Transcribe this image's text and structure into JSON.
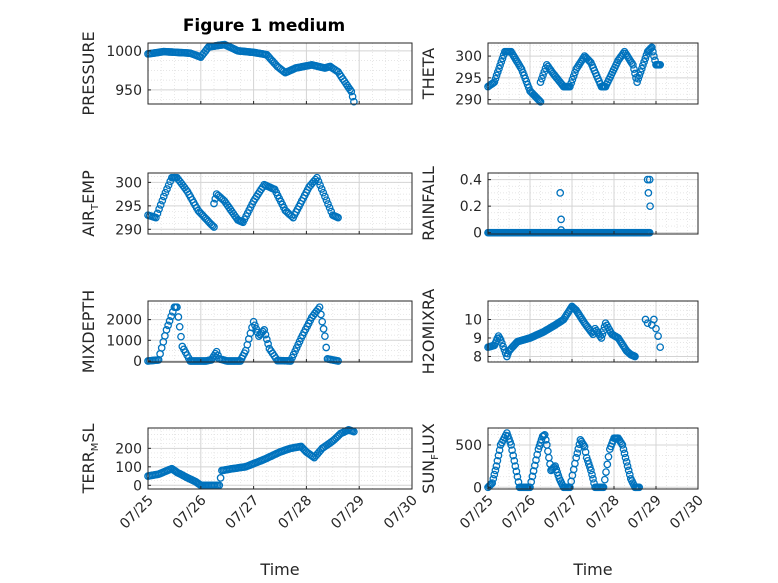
{
  "figure": {
    "title": "Figure 1 medium",
    "marker_color": "#0072BD",
    "x_tick_labels": [
      "07/25",
      "07/26",
      "07/27",
      "07/28",
      "07/29",
      "07/30"
    ],
    "x_axis_label": "Time"
  },
  "chart_data": [
    {
      "type": "scatter",
      "ylabel": "PRESSURE",
      "ylim": [
        932,
        1010
      ],
      "yticks": [
        950,
        1000
      ],
      "x_range_days": [
        0,
        5
      ],
      "grid": true,
      "knots": [
        [
          0,
          996
        ],
        [
          0.3,
          999
        ],
        [
          0.8,
          997
        ],
        [
          1.0,
          992
        ],
        [
          1.15,
          1005
        ],
        [
          1.45,
          1008
        ],
        [
          1.7,
          1000
        ],
        [
          2.0,
          998
        ],
        [
          2.25,
          995
        ],
        [
          2.45,
          980
        ],
        [
          2.6,
          972
        ],
        [
          2.8,
          978
        ],
        [
          3.1,
          982
        ],
        [
          3.35,
          978
        ],
        [
          3.45,
          980
        ],
        [
          3.6,
          973
        ],
        [
          3.75,
          958
        ],
        [
          3.85,
          948
        ],
        [
          3.9,
          935
        ]
      ]
    },
    {
      "type": "scatter",
      "ylabel": "THETA",
      "ylim": [
        289,
        303
      ],
      "yticks": [
        290,
        295,
        300
      ],
      "x_range_days": [
        0,
        5
      ],
      "grid": true,
      "knots": [
        [
          0,
          293
        ],
        [
          0.15,
          294
        ],
        [
          0.4,
          301
        ],
        [
          0.55,
          301
        ],
        [
          0.8,
          297
        ],
        [
          1.0,
          292
        ],
        [
          1.2,
          290
        ],
        [
          1.25,
          289.5
        ],
        [
          1.25,
          294
        ],
        [
          1.4,
          298
        ],
        [
          1.55,
          296
        ],
        [
          1.8,
          293
        ],
        [
          1.95,
          293
        ],
        [
          2.1,
          297
        ],
        [
          2.3,
          300
        ],
        [
          2.45,
          298.5
        ],
        [
          2.7,
          293
        ],
        [
          2.8,
          293
        ],
        [
          3.1,
          299
        ],
        [
          3.25,
          301
        ],
        [
          3.45,
          298
        ],
        [
          3.55,
          294
        ],
        [
          3.8,
          301
        ],
        [
          3.9,
          302
        ],
        [
          4.0,
          298
        ],
        [
          4.1,
          298
        ]
      ]
    },
    {
      "type": "scatter",
      "ylabel": "AIR_TEMP",
      "ylim": [
        289,
        302
      ],
      "yticks": [
        290,
        295,
        300
      ],
      "x_range_days": [
        0,
        5
      ],
      "grid": true,
      "knots": [
        [
          0,
          293
        ],
        [
          0.15,
          292.5
        ],
        [
          0.3,
          297
        ],
        [
          0.45,
          301
        ],
        [
          0.55,
          301
        ],
        [
          0.75,
          298
        ],
        [
          0.95,
          294
        ],
        [
          1.2,
          291
        ],
        [
          1.25,
          290.5
        ],
        [
          1.25,
          295.5
        ],
        [
          1.3,
          297.5
        ],
        [
          1.45,
          296
        ],
        [
          1.7,
          292
        ],
        [
          1.8,
          291.5
        ],
        [
          2.0,
          296
        ],
        [
          2.2,
          299.5
        ],
        [
          2.4,
          298.5
        ],
        [
          2.6,
          294
        ],
        [
          2.75,
          292.5
        ],
        [
          3.05,
          299
        ],
        [
          3.2,
          301
        ],
        [
          3.35,
          297
        ],
        [
          3.5,
          293
        ],
        [
          3.6,
          292.5
        ]
      ]
    },
    {
      "type": "scatter",
      "ylabel": "RAINFALL",
      "ylim": [
        -0.01,
        0.45
      ],
      "yticks": [
        0,
        0.2,
        0.4
      ],
      "x_range_days": [
        0,
        5
      ],
      "grid": true,
      "knots": [
        [
          0,
          0
        ],
        [
          3.85,
          0
        ]
      ],
      "spikes": [
        [
          1.72,
          0.3
        ],
        [
          1.74,
          0.1
        ],
        [
          1.74,
          0.02
        ],
        [
          3.8,
          0.4
        ],
        [
          3.85,
          0.4
        ],
        [
          3.82,
          0.3
        ],
        [
          3.86,
          0.2
        ]
      ]
    },
    {
      "type": "scatter",
      "ylabel": "MIXDEPTH",
      "ylim": [
        -50,
        2900
      ],
      "yticks": [
        0,
        1000,
        2000
      ],
      "x_range_days": [
        0,
        5
      ],
      "grid": true,
      "knots": [
        [
          0,
          0
        ],
        [
          0.2,
          50
        ],
        [
          0.35,
          1500
        ],
        [
          0.5,
          2600
        ],
        [
          0.55,
          2600
        ],
        [
          0.65,
          700
        ],
        [
          0.8,
          0
        ],
        [
          1.1,
          0
        ],
        [
          1.2,
          50
        ],
        [
          1.3,
          450
        ],
        [
          1.35,
          100
        ],
        [
          1.5,
          0
        ],
        [
          1.75,
          0
        ],
        [
          1.85,
          500
        ],
        [
          2.0,
          1900
        ],
        [
          2.1,
          1200
        ],
        [
          2.2,
          1500
        ],
        [
          2.3,
          600
        ],
        [
          2.45,
          20
        ],
        [
          2.7,
          0
        ],
        [
          2.9,
          1100
        ],
        [
          3.1,
          2100
        ],
        [
          3.25,
          2600
        ],
        [
          3.35,
          1200
        ],
        [
          3.4,
          100
        ],
        [
          3.6,
          0
        ]
      ]
    },
    {
      "type": "scatter",
      "ylabel": "H2OMIXRA",
      "ylim": [
        7.7,
        11
      ],
      "yticks": [
        8,
        9,
        10
      ],
      "x_range_days": [
        0,
        5
      ],
      "grid": true,
      "knots": [
        [
          0,
          8.5
        ],
        [
          0.15,
          8.6
        ],
        [
          0.25,
          9.1
        ],
        [
          0.3,
          8.9
        ],
        [
          0.45,
          8.0
        ],
        [
          0.5,
          8.3
        ],
        [
          0.7,
          8.8
        ],
        [
          1.0,
          9.0
        ],
        [
          1.3,
          9.3
        ],
        [
          1.6,
          9.7
        ],
        [
          1.8,
          10.0
        ],
        [
          2.0,
          10.7
        ],
        [
          2.1,
          10.5
        ],
        [
          2.3,
          9.8
        ],
        [
          2.5,
          9.2
        ],
        [
          2.55,
          9.5
        ],
        [
          2.7,
          9.0
        ],
        [
          2.8,
          9.8
        ],
        [
          2.95,
          9.2
        ],
        [
          3.1,
          9.0
        ],
        [
          3.3,
          8.3
        ],
        [
          3.4,
          8.1
        ],
        [
          3.5,
          8.0
        ]
      ],
      "spikes": [
        [
          3.75,
          10.0
        ],
        [
          3.8,
          9.8
        ],
        [
          3.9,
          9.7
        ],
        [
          3.95,
          10.0
        ],
        [
          4.0,
          9.5
        ],
        [
          4.05,
          9.1
        ],
        [
          4.1,
          8.5
        ]
      ]
    },
    {
      "type": "scatter",
      "ylabel": "TERR_MSL",
      "ylim": [
        -20,
        310
      ],
      "yticks": [
        0,
        100,
        200
      ],
      "x_range_days": [
        0,
        5
      ],
      "grid": true,
      "knots": [
        [
          0,
          50
        ],
        [
          0.2,
          60
        ],
        [
          0.45,
          90
        ],
        [
          0.55,
          70
        ],
        [
          0.75,
          40
        ],
        [
          0.9,
          20
        ],
        [
          1.0,
          0
        ],
        [
          1.2,
          0
        ],
        [
          1.35,
          0
        ],
        [
          1.4,
          80
        ],
        [
          1.6,
          90
        ],
        [
          1.85,
          100
        ],
        [
          2.2,
          140
        ],
        [
          2.5,
          180
        ],
        [
          2.7,
          200
        ],
        [
          2.9,
          210
        ],
        [
          3.0,
          180
        ],
        [
          3.15,
          150
        ],
        [
          3.3,
          200
        ],
        [
          3.5,
          240
        ],
        [
          3.65,
          280
        ],
        [
          3.8,
          300
        ],
        [
          3.9,
          290
        ]
      ]
    },
    {
      "type": "scatter",
      "ylabel": "SUN_FLUX",
      "ylim": [
        -20,
        700
      ],
      "yticks": [
        0,
        500
      ],
      "x_range_days": [
        0,
        5
      ],
      "grid": true,
      "knots": [
        [
          0,
          0
        ],
        [
          0.1,
          50
        ],
        [
          0.2,
          250
        ],
        [
          0.3,
          500
        ],
        [
          0.45,
          640
        ],
        [
          0.55,
          500
        ],
        [
          0.65,
          250
        ],
        [
          0.75,
          0
        ],
        [
          0.9,
          0
        ],
        [
          1.0,
          0
        ],
        [
          1.2,
          450
        ],
        [
          1.3,
          600
        ],
        [
          1.35,
          620
        ],
        [
          1.4,
          500
        ],
        [
          1.5,
          200
        ],
        [
          1.6,
          250
        ],
        [
          1.7,
          100
        ],
        [
          1.8,
          0
        ],
        [
          1.95,
          0
        ],
        [
          2.1,
          350
        ],
        [
          2.2,
          560
        ],
        [
          2.3,
          480
        ],
        [
          2.35,
          350
        ],
        [
          2.45,
          200
        ],
        [
          2.55,
          0
        ],
        [
          2.75,
          0
        ],
        [
          2.9,
          450
        ],
        [
          3.0,
          580
        ],
        [
          3.1,
          580
        ],
        [
          3.2,
          500
        ],
        [
          3.3,
          300
        ],
        [
          3.4,
          100
        ],
        [
          3.5,
          0
        ],
        [
          3.6,
          0
        ]
      ]
    }
  ]
}
